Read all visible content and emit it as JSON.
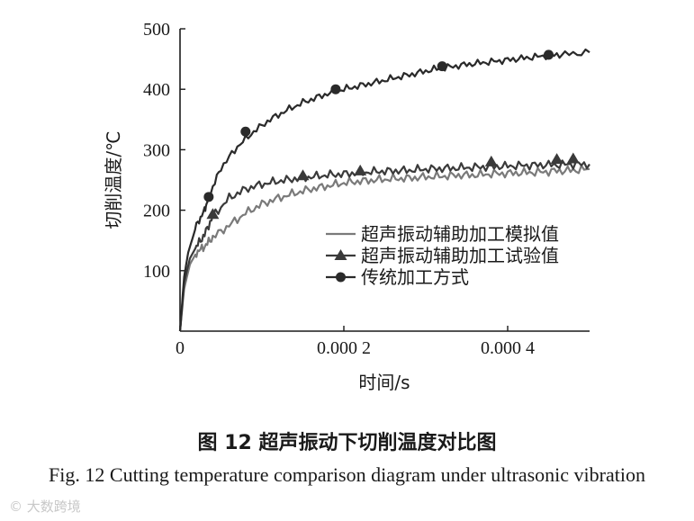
{
  "chart_data": {
    "type": "line",
    "title": "",
    "xlabel": "时间/s",
    "ylabel": "切削温度/℃",
    "xlim": [
      0,
      0.0005
    ],
    "ylim": [
      0,
      500
    ],
    "x_ticks": [
      0,
      0.0002,
      0.0004
    ],
    "x_tick_labels": [
      "0",
      "0.000 2",
      "0.000 4"
    ],
    "y_ticks": [
      100,
      200,
      300,
      400,
      500
    ],
    "y_tick_labels": [
      "100",
      "200",
      "300",
      "400",
      "500"
    ],
    "legend_position": "right",
    "series": [
      {
        "name": "超声振动辅助加工模拟值",
        "color": "#7a7a7a",
        "marker": "none",
        "x": [
          0,
          5e-06,
          1.2e-05,
          2e-05,
          3e-05,
          4e-05,
          6e-05,
          8e-05,
          0.0001,
          0.00012,
          0.00014,
          0.00016,
          0.00018,
          0.0002,
          0.00022,
          0.00024,
          0.00026,
          0.00028,
          0.0003,
          0.00032,
          0.00034,
          0.00036,
          0.00038,
          0.0004,
          0.00042,
          0.00044,
          0.00046,
          0.00048,
          0.0005
        ],
        "y": [
          0,
          70,
          110,
          130,
          140,
          155,
          175,
          195,
          210,
          220,
          228,
          235,
          240,
          245,
          248,
          250,
          252,
          253,
          255,
          256,
          258,
          258,
          260,
          261,
          262,
          263,
          265,
          266,
          268
        ]
      },
      {
        "name": "超声振动辅助加工试验值",
        "color": "#3a3a3a",
        "marker": "triangle",
        "x": [
          0,
          5e-06,
          1.2e-05,
          2e-05,
          3e-05,
          4e-05,
          6e-05,
          8e-05,
          0.0001,
          0.00012,
          0.00014,
          0.00016,
          0.00018,
          0.0002,
          0.00022,
          0.00024,
          0.00026,
          0.00028,
          0.0003,
          0.00032,
          0.00034,
          0.00036,
          0.00038,
          0.0004,
          0.00042,
          0.00044,
          0.00046,
          0.00048,
          0.0005
        ],
        "y": [
          0,
          80,
          120,
          140,
          160,
          190,
          220,
          235,
          243,
          248,
          252,
          255,
          258,
          260,
          262,
          264,
          265,
          266,
          268,
          269,
          270,
          271,
          272,
          273,
          274,
          275,
          275,
          276,
          276
        ],
        "marker_x": [
          4e-05,
          0.00015,
          0.00022,
          0.00038,
          0.00046,
          0.00048
        ],
        "marker_y": [
          193,
          257,
          265,
          280,
          284,
          285
        ]
      },
      {
        "name": "传统加工方式",
        "color": "#2a2a2a",
        "marker": "circle",
        "x": [
          0,
          5e-06,
          1e-05,
          2e-05,
          3e-05,
          3.5e-05,
          5e-05,
          7e-05,
          9e-05,
          0.00011,
          0.00013,
          0.00015,
          0.00017,
          0.00019,
          0.00021,
          0.00023,
          0.00025,
          0.00027,
          0.00029,
          0.00031,
          0.00033,
          0.00035,
          0.00037,
          0.00039,
          0.00041,
          0.00043,
          0.00045,
          0.00047,
          0.0005
        ],
        "y": [
          0,
          90,
          130,
          175,
          200,
          222,
          270,
          305,
          330,
          350,
          365,
          378,
          388,
          397,
          403,
          409,
          415,
          421,
          427,
          433,
          437,
          441,
          444,
          447,
          450,
          453,
          456,
          458,
          461
        ],
        "marker_x": [
          3.5e-05,
          8e-05,
          0.00019,
          0.00032,
          0.00045
        ],
        "marker_y": [
          222,
          330,
          400,
          438,
          457
        ]
      }
    ]
  },
  "caption_cn": "图 12  超声振动下切削温度对比图",
  "caption_en": "Fig. 12  Cutting temperature comparison diagram under ultrasonic vibration",
  "watermark": "大数跨境"
}
